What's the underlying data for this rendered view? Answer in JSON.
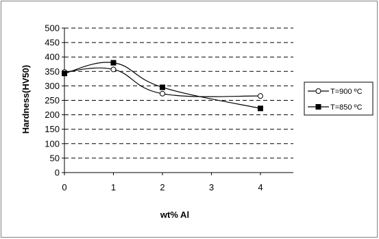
{
  "chart_data": {
    "type": "line",
    "title": "",
    "xlabel": "wt% Al",
    "ylabel": "Hardness(HV50)",
    "xlim": [
      0,
      4
    ],
    "ylim": [
      0,
      500
    ],
    "xticks": [
      "0",
      "1",
      "2",
      "3",
      "4"
    ],
    "yticks": [
      "0",
      "50",
      "100",
      "150",
      "200",
      "250",
      "300",
      "350",
      "400",
      "450",
      "500"
    ],
    "grid": "horizontal dashed",
    "legend_position": "right",
    "series": [
      {
        "name": "T=900 ºC",
        "marker": "open-circle",
        "color": "#000000",
        "points": [
          {
            "x": 0,
            "y": 348
          },
          {
            "x": 1,
            "y": 357
          },
          {
            "x": 2,
            "y": 273
          },
          {
            "x": 4,
            "y": 265
          }
        ]
      },
      {
        "name": "T=850 ºC",
        "marker": "filled-square",
        "color": "#000000",
        "points": [
          {
            "x": 0,
            "y": 343
          },
          {
            "x": 1,
            "y": 380
          },
          {
            "x": 2,
            "y": 295
          },
          {
            "x": 4,
            "y": 222
          }
        ]
      }
    ]
  }
}
